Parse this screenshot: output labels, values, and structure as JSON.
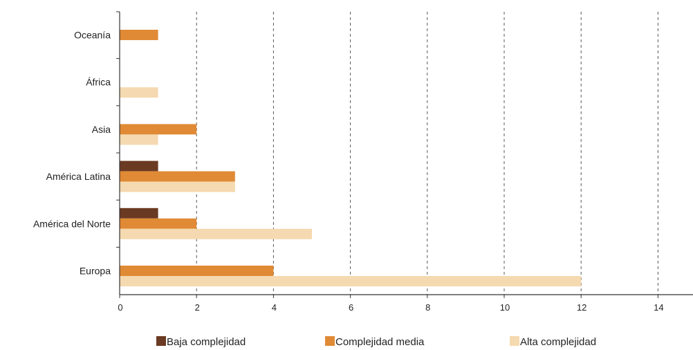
{
  "chart_data": {
    "type": "bar",
    "orientation": "horizontal",
    "categories": [
      "Oceanía",
      "África",
      "Asia",
      "América Latina",
      "América del Norte",
      "Europa"
    ],
    "series": [
      {
        "name": "Baja complejidad",
        "color": "#6b3a22",
        "values": [
          0,
          0,
          0,
          1,
          1,
          0
        ]
      },
      {
        "name": "Complejidad media",
        "color": "#e08a35",
        "values": [
          1,
          0,
          2,
          3,
          2,
          4
        ]
      },
      {
        "name": "Alta complejidad",
        "color": "#f5d9b0",
        "values": [
          0,
          1,
          1,
          3,
          5,
          12
        ]
      }
    ],
    "x_ticks": [
      0,
      2,
      4,
      6,
      8,
      10,
      12,
      14
    ],
    "xlim": [
      0,
      14
    ],
    "grid": "vertical dashed",
    "legend_position": "bottom",
    "title": "",
    "xlabel": "",
    "ylabel": ""
  }
}
